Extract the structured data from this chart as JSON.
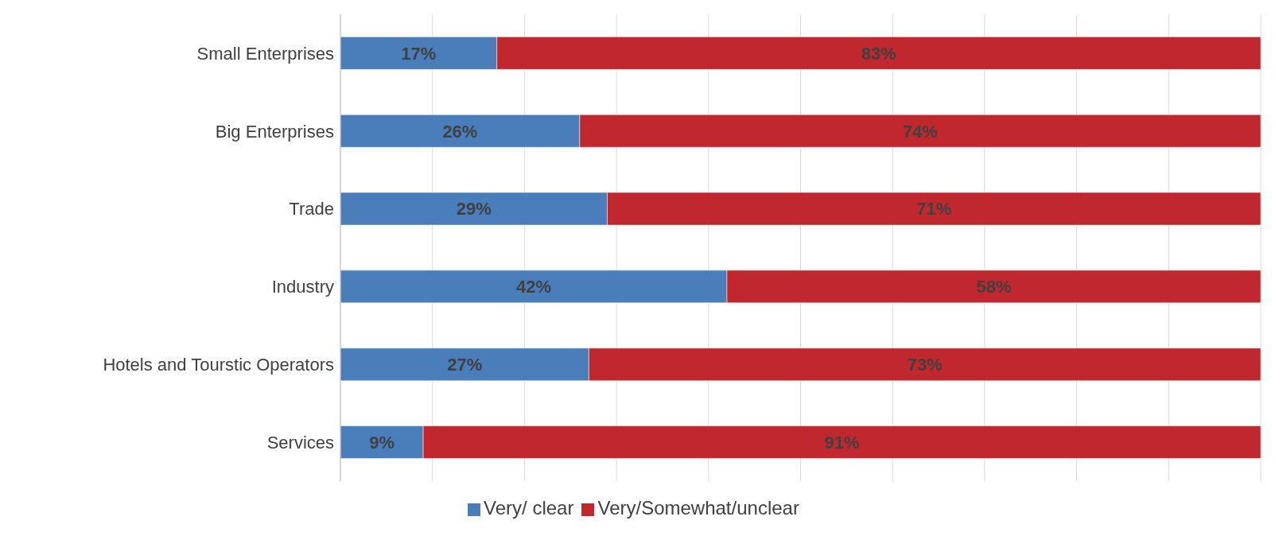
{
  "chart_data": {
    "type": "bar",
    "orientation": "horizontal",
    "stacked": true,
    "categories": [
      "Small Enterprises",
      "Big Enterprises",
      "Trade",
      "Industry",
      "Hotels and Tourstic Operators",
      "Services"
    ],
    "series": [
      {
        "name": "Very/ clear",
        "color": "#4a7ebb",
        "values": [
          17,
          26,
          29,
          42,
          27,
          9
        ],
        "value_labels": [
          "17%",
          "26%",
          "29%",
          "42%",
          "27%",
          "9%"
        ]
      },
      {
        "name": "Very/Somewhat/unclear",
        "color": "#c0282d",
        "values": [
          83,
          74,
          71,
          58,
          73,
          91
        ],
        "value_labels": [
          "83%",
          "74%",
          "71%",
          "58%",
          "73%",
          "91%"
        ]
      }
    ],
    "grid": "x",
    "legend": "bottom",
    "tick_labels": "y"
  }
}
